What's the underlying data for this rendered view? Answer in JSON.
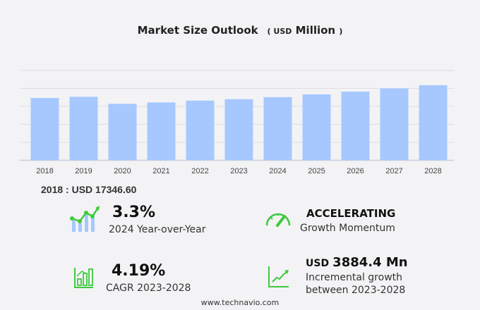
{
  "title": {
    "main": "Market Size Outlook",
    "open": "(",
    "unit": "USD",
    "scale": "Million",
    "close": ")"
  },
  "chart_data": {
    "type": "bar",
    "title": "Market Size Outlook (USD Million)",
    "categories": [
      "2018",
      "2019",
      "2020",
      "2021",
      "2022",
      "2023",
      "2024",
      "2025",
      "2026",
      "2027",
      "2028"
    ],
    "values": [
      17346.6,
      17680,
      15710,
      16100,
      16620,
      17010,
      17570,
      18330,
      19120,
      20010,
      20894
    ],
    "ylim": [
      0,
      25000
    ],
    "grid": true,
    "bar_color": "#a6c8ff"
  },
  "base_value_label": "2018 : USD  17346.60",
  "kpis": {
    "yoy": {
      "value": "3.3%",
      "label": "2024 Year-over-Year",
      "icon": "bar-trend-icon"
    },
    "momentum": {
      "value": "ACCELERATING",
      "label": "Growth Momentum",
      "icon": "speedometer-icon"
    },
    "cagr": {
      "value": "4.19%",
      "label": "CAGR 2023-2028",
      "icon": "bar-chart-icon"
    },
    "incremental": {
      "prefix": "USD",
      "value": "3884.4 Mn",
      "label1": "Incremental growth",
      "label2": "between 2023-2028",
      "icon": "line-growth-icon"
    }
  },
  "colors": {
    "accent_green": "#3ec93e",
    "bar": "#a6c8ff"
  },
  "footer": "www.technavio.com"
}
